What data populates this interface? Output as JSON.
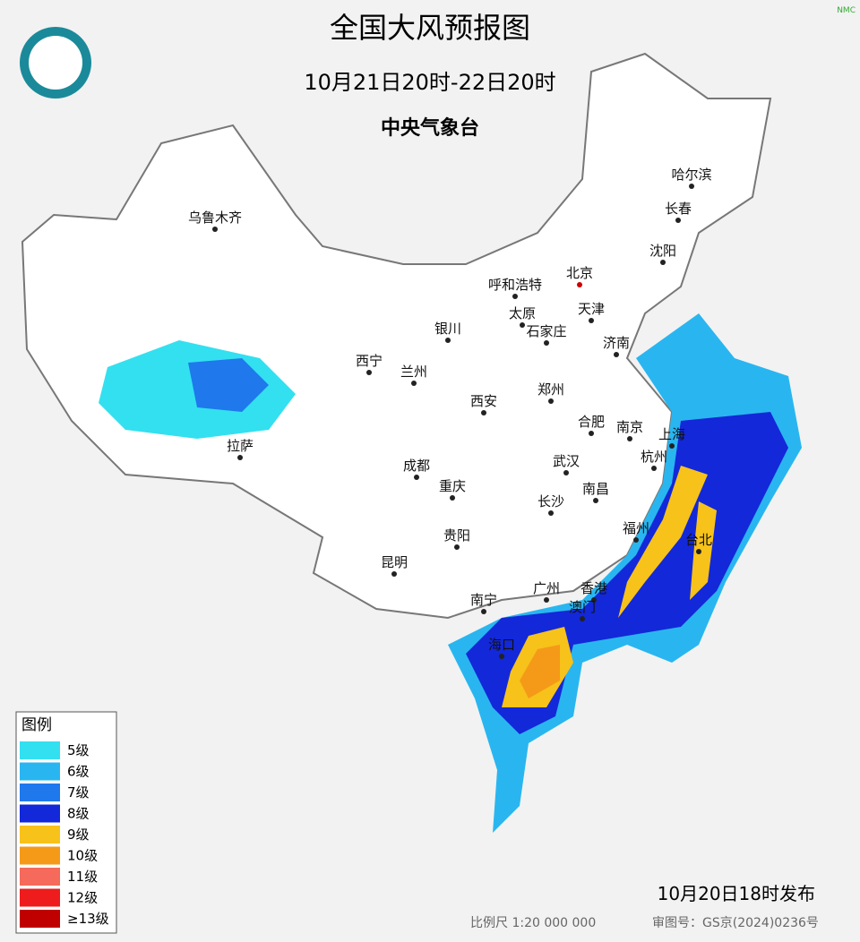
{
  "header": {
    "title": "全国大风预报图",
    "period": "10月21日20时-22日20时",
    "issuer": "中央气象台",
    "corner": "NMC"
  },
  "cities": [
    "乌鲁木齐",
    "哈尔滨",
    "长春",
    "沈阳",
    "呼和浩特",
    "北京",
    "天津",
    "银川",
    "太原",
    "石家庄",
    "济南",
    "西宁",
    "兰州",
    "郑州",
    "西安",
    "合肥",
    "南京",
    "上海",
    "杭州",
    "拉萨",
    "成都",
    "重庆",
    "武汉",
    "南昌",
    "长沙",
    "福州",
    "台北",
    "贵阳",
    "昆明",
    "南宁",
    "广州",
    "香港",
    "澳门",
    "海口"
  ],
  "legend": {
    "title": "图例",
    "items": [
      {
        "label": "5级",
        "color": "#33e0f0"
      },
      {
        "label": "6级",
        "color": "#29b6f0"
      },
      {
        "label": "7级",
        "color": "#1f78ec"
      },
      {
        "label": "8级",
        "color": "#1328d8"
      },
      {
        "label": "9级",
        "color": "#f7c21a"
      },
      {
        "label": "10级",
        "color": "#f59a18"
      },
      {
        "label": "11级",
        "color": "#f56a5a"
      },
      {
        "label": "12级",
        "color": "#ee1c1c"
      },
      {
        "label": "≥13级",
        "color": "#c00000"
      }
    ]
  },
  "footer": {
    "issued": "10月20日18时发布",
    "scale": "比例尺 1:20 000 000",
    "review": "审图号：GS京(2024)0236号"
  }
}
